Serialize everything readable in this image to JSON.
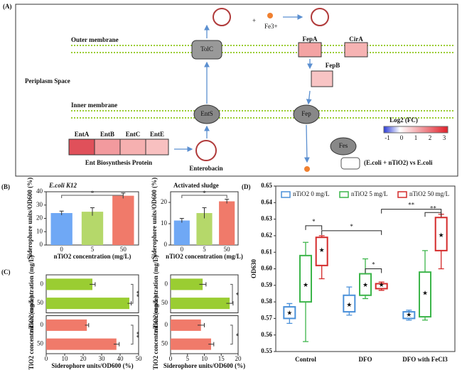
{
  "diagram": {
    "panels": [
      "(A)",
      "(B)",
      "(C)",
      "(D)"
    ],
    "outer_membrane": "Outer membrane",
    "periplasm": "Periplasm Space",
    "inner_membrane": "Inner membrane",
    "proteins": {
      "tolc": "TolC",
      "fepa": "FepA",
      "cira": "CirA",
      "fepb": "FepB",
      "ents": "EntS",
      "fep": "Fep",
      "fes": "Fes",
      "enta": "EntA",
      "entb": "EntB",
      "entc": "EntC",
      "ente": "EntE"
    },
    "ent_group": "Ent Biosynthesis Protein",
    "enterobactin": "Enterobacin",
    "iron": "Fe3+",
    "plus": "+",
    "scale_title": "Log2 (FC)",
    "scale_ticks": [
      -1,
      0,
      1,
      2,
      3
    ],
    "comparison": "(E.coli + nTiO2) vs E.coli"
  },
  "chart_data": [
    {
      "type": "bar",
      "title": "E.coli K12",
      "categories": [
        "0",
        "5",
        "50"
      ],
      "values": [
        24,
        25,
        37
      ],
      "errors": [
        1.5,
        3,
        2
      ],
      "colors": [
        "#6fa8f5",
        "#b5d86a",
        "#f07a6a"
      ],
      "ylim": [
        0,
        40
      ],
      "yticks": [
        0,
        10,
        20,
        30,
        40
      ],
      "ylabel": "Siderophore units/OD600 (%)",
      "xlabel": "nTiO2 concentration (mg/L)",
      "annotation": "*"
    },
    {
      "type": "bar",
      "title": "Activated sludge",
      "categories": [
        "0",
        "5",
        "50"
      ],
      "values": [
        11.5,
        15,
        20.5
      ],
      "errors": [
        1,
        2.5,
        1
      ],
      "colors": [
        "#6fa8f5",
        "#b5d86a",
        "#f07a6a"
      ],
      "ylim": [
        0,
        25
      ],
      "yticks": [
        0,
        10,
        20
      ],
      "ylabel": "Siderophore units/OD600 (%)",
      "xlabel": "nTiO2 concentration (mg/L)",
      "annotation": "*"
    },
    {
      "type": "hbar",
      "categories": [
        "0",
        "50"
      ],
      "series": [
        {
          "color": "#9acd32",
          "values": [
            25,
            45
          ],
          "errors": [
            1.5,
            1
          ]
        },
        {
          "color": "#f07a6a",
          "values": [
            22,
            38
          ],
          "errors": [
            1,
            1.5
          ]
        }
      ],
      "xlim": [
        0,
        50
      ],
      "xticks": [
        0,
        10,
        20,
        30,
        40,
        50
      ],
      "ylabel": "nTiO2 concentration (mg/L)",
      "xlabel": "Siderophore units/OD600 (%)",
      "annotations": [
        "**",
        "**"
      ]
    },
    {
      "type": "hbar",
      "categories": [
        "0",
        "50"
      ],
      "series": [
        {
          "color": "#9acd32",
          "values": [
            9.5,
            17.5
          ],
          "errors": [
            1,
            1
          ]
        },
        {
          "color": "#f07a6a",
          "values": [
            9,
            12
          ],
          "errors": [
            1,
            0.8
          ]
        }
      ],
      "xlim": [
        0,
        20
      ],
      "xticks": [
        0,
        5,
        10,
        15,
        20
      ],
      "ylabel": "nTiO2 concentration (mg/L)",
      "xlabel": "Siderophore units/OD600 (%)",
      "annotations": [
        "*",
        "*"
      ]
    },
    {
      "type": "box",
      "categories": [
        "Control",
        "DFO",
        "DFO with FeCl3"
      ],
      "series": [
        {
          "name": "nTiO2 0 mg/L",
          "color": "#4a90d9",
          "min": [
            0.567,
            0.572,
            0.569
          ],
          "q1": [
            0.57,
            0.574,
            0.57
          ],
          "q3": [
            0.577,
            0.584,
            0.574
          ],
          "max": [
            0.579,
            0.589,
            0.575
          ],
          "mean": [
            0.573,
            0.578,
            0.572
          ]
        },
        {
          "name": "nTiO2 5 mg/L",
          "color": "#3cb54a",
          "min": [
            0.556,
            0.582,
            0.569
          ],
          "q1": [
            0.58,
            0.584,
            0.571
          ],
          "q3": [
            0.608,
            0.597,
            0.598
          ],
          "max": [
            0.616,
            0.606,
            0.611
          ],
          "mean": [
            0.59,
            0.59,
            0.585
          ]
        },
        {
          "name": "nTiO2 50 mg/L",
          "color": "#d42a2a",
          "min": [
            0.594,
            0.587,
            0.6
          ],
          "q1": [
            0.602,
            0.588,
            0.611
          ],
          "q3": [
            0.619,
            0.591,
            0.631
          ],
          "max": [
            0.62,
            0.592,
            0.633
          ],
          "mean": [
            0.611,
            0.59,
            0.62
          ]
        }
      ],
      "ylim": [
        0.55,
        0.65
      ],
      "yticks": [
        0.55,
        0.56,
        0.57,
        0.58,
        0.59,
        {
          "value": 0.6,
          "label": "0.60"
        },
        0.61,
        0.62,
        0.63,
        0.64,
        0.65
      ],
      "ylabel": "OD630",
      "annotations": [
        "*",
        "*",
        "*",
        "**",
        "**"
      ]
    }
  ]
}
